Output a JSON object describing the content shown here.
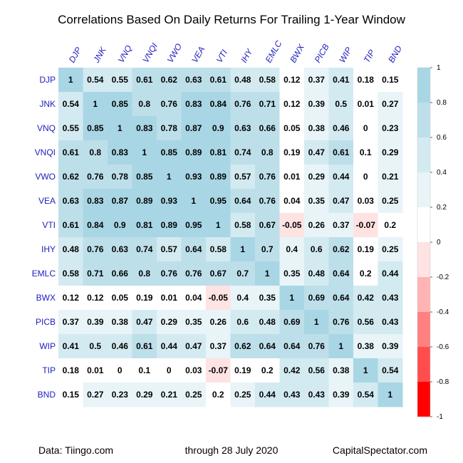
{
  "title": "Correlations Based On Daily Returns For Trailing 1-Year Window",
  "footer": {
    "left": "Data: Tiingo.com",
    "center": "through 28 July 2020",
    "right": "CapitalSpectator.com"
  },
  "chart_data": {
    "type": "heatmap",
    "title": "Correlations Based On Daily Returns For Trailing 1-Year Window",
    "rows": [
      "DJP",
      "JNK",
      "VNQ",
      "VNQI",
      "VWO",
      "VEA",
      "VTI",
      "IHY",
      "EMLC",
      "BWX",
      "PICB",
      "WIP",
      "TIP",
      "BND"
    ],
    "columns": [
      "DJP",
      "JNK",
      "VNQ",
      "VNQI",
      "VWO",
      "VEA",
      "VTI",
      "IHY",
      "EMLC",
      "BWX",
      "PICB",
      "WIP",
      "TIP",
      "BND"
    ],
    "values": [
      [
        1,
        0.54,
        0.55,
        0.61,
        0.62,
        0.63,
        0.61,
        0.48,
        0.58,
        0.12,
        0.37,
        0.41,
        0.18,
        0.15
      ],
      [
        0.54,
        1,
        0.85,
        0.8,
        0.76,
        0.83,
        0.84,
        0.76,
        0.71,
        0.12,
        0.39,
        0.5,
        0.01,
        0.27
      ],
      [
        0.55,
        0.85,
        1,
        0.83,
        0.78,
        0.87,
        0.9,
        0.63,
        0.66,
        0.05,
        0.38,
        0.46,
        0,
        0.23
      ],
      [
        0.61,
        0.8,
        0.83,
        1,
        0.85,
        0.89,
        0.81,
        0.74,
        0.8,
        0.19,
        0.47,
        0.61,
        0.1,
        0.29
      ],
      [
        0.62,
        0.76,
        0.78,
        0.85,
        1,
        0.93,
        0.89,
        0.57,
        0.76,
        0.01,
        0.29,
        0.44,
        0,
        0.21
      ],
      [
        0.63,
        0.83,
        0.87,
        0.89,
        0.93,
        1,
        0.95,
        0.64,
        0.76,
        0.04,
        0.35,
        0.47,
        0.03,
        0.25
      ],
      [
        0.61,
        0.84,
        0.9,
        0.81,
        0.89,
        0.95,
        1,
        0.58,
        0.67,
        -0.05,
        0.26,
        0.37,
        -0.07,
        0.2
      ],
      [
        0.48,
        0.76,
        0.63,
        0.74,
        0.57,
        0.64,
        0.58,
        1,
        0.7,
        0.4,
        0.6,
        0.62,
        0.19,
        0.25
      ],
      [
        0.58,
        0.71,
        0.66,
        0.8,
        0.76,
        0.76,
        0.67,
        0.7,
        1,
        0.35,
        0.48,
        0.64,
        0.2,
        0.44
      ],
      [
        0.12,
        0.12,
        0.05,
        0.19,
        0.01,
        0.04,
        -0.05,
        0.4,
        0.35,
        1,
        0.69,
        0.64,
        0.42,
        0.43
      ],
      [
        0.37,
        0.39,
        0.38,
        0.47,
        0.29,
        0.35,
        0.26,
        0.6,
        0.48,
        0.69,
        1,
        0.76,
        0.56,
        0.43
      ],
      [
        0.41,
        0.5,
        0.46,
        0.61,
        0.44,
        0.47,
        0.37,
        0.62,
        0.64,
        0.64,
        0.76,
        1,
        0.38,
        0.39
      ],
      [
        0.18,
        0.01,
        0,
        0.1,
        0,
        0.03,
        -0.07,
        0.19,
        0.2,
        0.42,
        0.56,
        0.38,
        1,
        0.54
      ],
      [
        0.15,
        0.27,
        0.23,
        0.29,
        0.21,
        0.25,
        0.2,
        0.25,
        0.44,
        0.43,
        0.43,
        0.39,
        0.54,
        1
      ]
    ],
    "legend": {
      "range": [
        -1,
        1
      ],
      "tick_labels": [
        "1",
        "0.8",
        "0.6",
        "0.4",
        "0.2",
        "0",
        "-0.2",
        "-0.4",
        "-0.6",
        "-0.8",
        "-1"
      ],
      "placement": "right"
    },
    "colors": {
      "positive": [
        "#ffffff",
        "#e8f4f8",
        "#d3eaf1",
        "#bddfea",
        "#a9d6e4"
      ],
      "negative": [
        "#ffe2e2",
        "#ffb3b3",
        "#ff8080",
        "#ff4d4d",
        "#ff0000"
      ],
      "label": "#2020c0"
    },
    "grid": false
  }
}
